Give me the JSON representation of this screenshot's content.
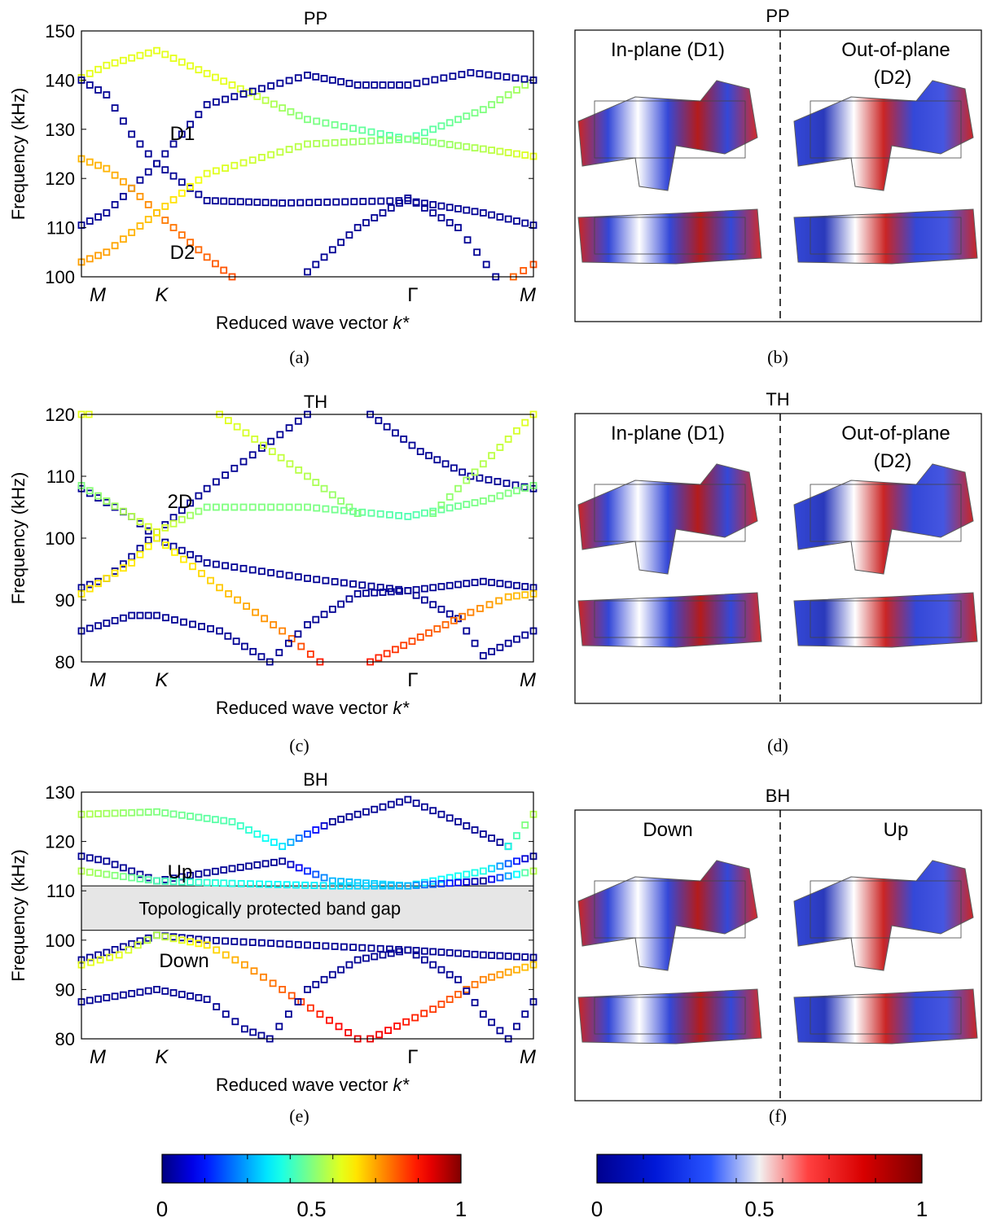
{
  "colors": {
    "axis": "#000000",
    "gap": "#e6e6e6",
    "frame": "#000000"
  },
  "panels": [
    {
      "id": "a",
      "caption": "(a)",
      "title": "PP",
      "xlabel": "Reduced wave vector ",
      "xlabel_italic": "k*",
      "ylabel": "Frequency (kHz)",
      "yticks": [
        "100",
        "110",
        "120",
        "130",
        "140",
        "150"
      ],
      "xticks": [
        "M",
        "K",
        "Γ",
        "M"
      ],
      "annotations": [
        "D1",
        "D2"
      ]
    },
    {
      "id": "c",
      "caption": "(c)",
      "title": "TH",
      "xlabel": "Reduced wave vector ",
      "xlabel_italic": "k*",
      "ylabel": "Frequency (kHz)",
      "yticks": [
        "80",
        "90",
        "100",
        "110",
        "120"
      ],
      "xticks": [
        "M",
        "K",
        "Γ",
        "M"
      ],
      "annotations": [
        "2D"
      ]
    },
    {
      "id": "e",
      "caption": "(e)",
      "title": "BH",
      "xlabel": "Reduced wave vector ",
      "xlabel_italic": "k*",
      "ylabel": "Frequency (kHz)",
      "yticks": [
        "80",
        "90",
        "100",
        "110",
        "120",
        "130"
      ],
      "xticks": [
        "M",
        "K",
        "Γ",
        "M"
      ],
      "annotations": [
        "Up",
        "Down"
      ],
      "gap_label": "Topologically protected band gap"
    }
  ],
  "modes": [
    {
      "id": "b",
      "caption": "(b)",
      "title": "PP",
      "left": "In-plane (D1)",
      "right_1": "Out-of-plane",
      "right_2": "(D2)"
    },
    {
      "id": "d",
      "caption": "(d)",
      "title": "TH",
      "left": "In-plane (D1)",
      "right_1": "Out-of-plane",
      "right_2": "(D2)"
    },
    {
      "id": "f",
      "caption": "(f)",
      "title": "BH",
      "left": "Down",
      "right_1": "Up",
      "right_2": ""
    }
  ],
  "colorbars": [
    {
      "name": "jet",
      "ticks": [
        "0",
        "0.5",
        "1"
      ]
    },
    {
      "name": "bwr",
      "ticks": [
        "0",
        "0.5",
        "1"
      ]
    }
  ],
  "chart_data": [
    {
      "type": "scatter",
      "title": "PP",
      "xlabel": "Reduced wave vector k*",
      "ylabel": "Frequency (kHz)",
      "ylim": [
        100,
        150
      ],
      "x_points": [
        "M",
        "K",
        "Γ",
        "M"
      ],
      "x_positions": [
        0,
        0.3,
        1.3,
        1.8
      ],
      "series": [
        {
          "values": [
            [
              0,
              140.5,
              0.6
            ],
            [
              0.1,
              143,
              0.6
            ],
            [
              0.3,
              146,
              0.6
            ],
            [
              0.6,
              139,
              0.6
            ],
            [
              0.9,
              132,
              0.5
            ],
            [
              1.3,
              128,
              0.45
            ],
            [
              1.6,
              134,
              0.5
            ],
            [
              1.8,
              140,
              0.55
            ]
          ]
        },
        {
          "values": [
            [
              0,
              140,
              0.02
            ],
            [
              0.1,
              137,
              0.02
            ],
            [
              0.2,
              129,
              0.02
            ],
            [
              0.3,
              123,
              0.02
            ],
            [
              0.5,
              115.5,
              0.02
            ],
            [
              0.8,
              115,
              0.02
            ],
            [
              1.3,
              115.5,
              0.02
            ],
            [
              1.6,
              113,
              0.02
            ],
            [
              1.8,
              110.5,
              0.02
            ]
          ]
        },
        {
          "values": [
            [
              0,
              110.5,
              0.02
            ],
            [
              0.1,
              113,
              0.02
            ],
            [
              0.2,
              118,
              0.02
            ],
            [
              0.3,
              123,
              0.02
            ],
            [
              0.5,
              135,
              0.02
            ],
            [
              0.9,
              141,
              0.02
            ],
            [
              1.1,
              139,
              0.02
            ],
            [
              1.3,
              139,
              0.02
            ],
            [
              1.55,
              141.5,
              0.02
            ],
            [
              1.8,
              140,
              0.02
            ]
          ]
        },
        {
          "values": [
            [
              0,
              124,
              0.7
            ],
            [
              0.1,
              122,
              0.7
            ],
            [
              0.2,
              118,
              0.72
            ],
            [
              0.3,
              113,
              0.75
            ],
            [
              0.5,
              104,
              0.78
            ],
            [
              0.6,
              100,
              0.8
            ]
          ]
        },
        {
          "values": [
            [
              0,
              103,
              0.72
            ],
            [
              0.1,
              105,
              0.72
            ],
            [
              0.2,
              109,
              0.7
            ],
            [
              0.3,
              113,
              0.68
            ],
            [
              0.5,
              121,
              0.6
            ],
            [
              0.9,
              127,
              0.55
            ],
            [
              1.3,
              128,
              0.5
            ],
            [
              1.6,
              126,
              0.55
            ],
            [
              1.8,
              124.5,
              0.6
            ]
          ]
        },
        {
          "values": [
            [
              0.9,
              101,
              0.02
            ],
            [
              1.1,
              110,
              0.02
            ],
            [
              1.3,
              116,
              0.02
            ],
            [
              1.5,
              110,
              0.02
            ],
            [
              1.65,
              100,
              0.02
            ]
          ]
        },
        {
          "values": [
            [
              1.72,
              100,
              0.78
            ],
            [
              1.8,
              102.5,
              0.8
            ]
          ]
        }
      ]
    },
    {
      "type": "scatter",
      "title": "TH",
      "xlabel": "Reduced wave vector k*",
      "ylabel": "Frequency (kHz)",
      "ylim": [
        80,
        120
      ],
      "x_points": [
        "M",
        "K",
        "Γ",
        "M"
      ],
      "x_positions": [
        0,
        0.3,
        1.3,
        1.8
      ],
      "series": [
        {
          "values": [
            [
              0,
              108,
              0.02
            ],
            [
              0.2,
              103.5,
              0.02
            ],
            [
              0.3,
              100,
              0.02
            ],
            [
              0.5,
              96,
              0.02
            ],
            [
              0.9,
              93.5,
              0.02
            ],
            [
              1.3,
              91.5,
              0.02
            ],
            [
              1.6,
              93,
              0.02
            ],
            [
              1.8,
              92,
              0.02
            ]
          ]
        },
        {
          "values": [
            [
              0,
              92,
              0.02
            ],
            [
              0.1,
              93.5,
              0.02
            ],
            [
              0.2,
              97,
              0.02
            ],
            [
              0.3,
              101,
              0.02
            ],
            [
              0.5,
              108,
              0.02
            ],
            [
              0.9,
              120,
              0.02
            ]
          ]
        },
        {
          "values": [
            [
              1.15,
              120,
              0.02
            ],
            [
              1.35,
              114,
              0.02
            ],
            [
              1.55,
              110,
              0.02
            ],
            [
              1.8,
              108,
              0.02
            ]
          ]
        },
        {
          "values": [
            [
              0,
              108.5,
              0.5
            ],
            [
              0.2,
              103.5,
              0.55
            ],
            [
              0.3,
              101,
              0.6
            ],
            [
              0.5,
              105,
              0.5
            ],
            [
              0.9,
              105,
              0.5
            ],
            [
              1.3,
              103.5,
              0.45
            ],
            [
              1.6,
              106,
              0.5
            ],
            [
              1.8,
              108.5,
              0.5
            ]
          ]
        },
        {
          "values": [
            [
              0,
              91,
              0.65
            ],
            [
              0.2,
              96,
              0.65
            ],
            [
              0.3,
              100,
              0.62
            ],
            [
              0.55,
              92,
              0.68
            ],
            [
              0.8,
              85,
              0.75
            ],
            [
              0.95,
              80,
              0.85
            ]
          ]
        },
        {
          "values": [
            [
              0.55,
              120,
              0.6
            ],
            [
              0.9,
              110,
              0.55
            ],
            [
              1.1,
              104,
              0.5
            ]
          ]
        },
        {
          "values": [
            [
              1.4,
              104,
              0.5
            ],
            [
              1.6,
              112,
              0.55
            ],
            [
              1.8,
              120,
              0.6
            ]
          ]
        },
        {
          "values": [
            [
              0,
              85,
              0.02
            ],
            [
              0.2,
              87.5,
              0.02
            ],
            [
              0.3,
              87.5,
              0.02
            ],
            [
              0.55,
              85,
              0.02
            ],
            [
              0.75,
              80,
              0.02
            ],
            [
              0.9,
              86,
              0.02
            ],
            [
              1.1,
              91,
              0.02
            ],
            [
              1.3,
              91.5,
              0.02
            ],
            [
              1.5,
              87,
              0.02
            ],
            [
              1.6,
              81,
              0.02
            ],
            [
              1.7,
              83,
              0.02
            ],
            [
              1.8,
              85,
              0.02
            ]
          ]
        },
        {
          "values": [
            [
              1.15,
              80,
              0.85
            ],
            [
              1.35,
              84,
              0.8
            ],
            [
              1.55,
              88,
              0.75
            ],
            [
              1.7,
              90.5,
              0.7
            ],
            [
              1.8,
              91,
              0.68
            ]
          ]
        },
        {
          "values": [
            [
              0,
              120,
              0.6
            ],
            [
              0.03,
              120,
              0.6
            ]
          ]
        }
      ]
    },
    {
      "type": "scatter",
      "title": "BH",
      "xlabel": "Reduced wave vector k*",
      "ylabel": "Frequency (kHz)",
      "ylim": [
        80,
        130
      ],
      "x_points": [
        "M",
        "K",
        "Γ",
        "M"
      ],
      "x_positions": [
        0,
        0.3,
        1.3,
        1.8
      ],
      "gap": [
        102,
        111
      ],
      "series": [
        {
          "values": [
            [
              0,
              125.5,
              0.55
            ],
            [
              0.3,
              126,
              0.5
            ],
            [
              0.6,
              124,
              0.45
            ],
            [
              0.8,
              119,
              0.35
            ],
            [
              1.0,
              124,
              0.02
            ],
            [
              1.3,
              128.5,
              0.02
            ],
            [
              1.5,
              124,
              0.02
            ],
            [
              1.7,
              119,
              0.02
            ]
          ]
        },
        {
          "values": [
            [
              1.7,
              119,
              0.4
            ],
            [
              1.8,
              125.5,
              0.55
            ]
          ]
        },
        {
          "values": [
            [
              0,
              117,
              0.02
            ],
            [
              0.1,
              116,
              0.02
            ],
            [
              0.3,
              112,
              0.02
            ],
            [
              0.6,
              114.5,
              0.02
            ],
            [
              0.8,
              116,
              0.02
            ],
            [
              1.0,
              112,
              0.3
            ],
            [
              1.3,
              111,
              0.35
            ],
            [
              1.6,
              114,
              0.4
            ],
            [
              1.8,
              117,
              0.02
            ]
          ]
        },
        {
          "values": [
            [
              0,
              114,
              0.55
            ],
            [
              0.3,
              112,
              0.45
            ],
            [
              0.6,
              111.5,
              0.4
            ],
            [
              1.0,
              111,
              0.35
            ],
            [
              1.3,
              111,
              0.3
            ],
            [
              1.6,
              112,
              0.02
            ],
            [
              1.8,
              114,
              0.55
            ]
          ]
        },
        {
          "values": [
            [
              0,
              96,
              0.02
            ],
            [
              0.1,
              97.5,
              0.02
            ],
            [
              0.3,
              101,
              0.02
            ],
            [
              0.5,
              100,
              0.02
            ],
            [
              0.9,
              99,
              0.02
            ],
            [
              1.3,
              98,
              0.02
            ],
            [
              1.6,
              97,
              0.02
            ],
            [
              1.8,
              96.5,
              0.02
            ]
          ]
        },
        {
          "values": [
            [
              0,
              95,
              0.6
            ],
            [
              0.15,
              97,
              0.6
            ],
            [
              0.3,
              101,
              0.55
            ],
            [
              0.5,
              99,
              0.65
            ],
            [
              0.65,
              95,
              0.72
            ],
            [
              0.8,
              90,
              0.78
            ],
            [
              0.95,
              85,
              0.85
            ],
            [
              1.1,
              80,
              0.9
            ]
          ]
        },
        {
          "values": [
            [
              1.15,
              80,
              0.9
            ],
            [
              1.4,
              86,
              0.82
            ],
            [
              1.6,
              92,
              0.75
            ],
            [
              1.8,
              95,
              0.68
            ]
          ]
        },
        {
          "values": [
            [
              0,
              87.5,
              0.02
            ],
            [
              0.3,
              90,
              0.02
            ],
            [
              0.5,
              88,
              0.02
            ],
            [
              0.65,
              82,
              0.02
            ],
            [
              0.75,
              80,
              0.02
            ],
            [
              0.9,
              90,
              0.02
            ],
            [
              1.1,
              96,
              0.02
            ],
            [
              1.3,
              98,
              0.02
            ],
            [
              1.5,
              92,
              0.02
            ],
            [
              1.6,
              85,
              0.02
            ],
            [
              1.7,
              80,
              0.02
            ],
            [
              1.8,
              87.5,
              0.02
            ]
          ]
        }
      ]
    }
  ]
}
